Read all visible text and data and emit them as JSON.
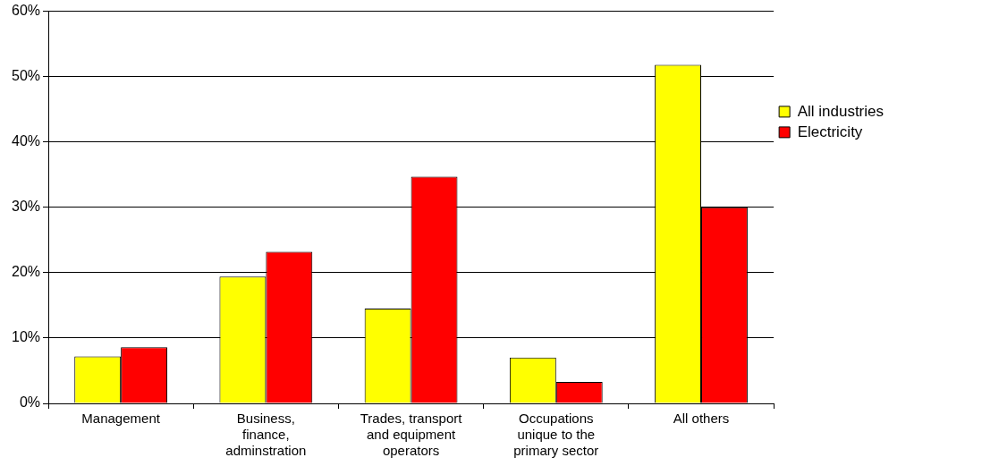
{
  "chart_data": {
    "type": "bar",
    "categories": [
      "Management",
      "Business, finance, adminstration",
      "Trades, transport and equipment operators",
      "Occupations unique to the primary sector",
      "All others"
    ],
    "series": [
      {
        "name": "All industries",
        "color": "#ffff00",
        "values": [
          7.2,
          19.4,
          14.5,
          7.0,
          51.8
        ]
      },
      {
        "name": "Electricity",
        "color": "#ff0000",
        "values": [
          8.6,
          23.2,
          34.7,
          3.3,
          30.0
        ]
      }
    ],
    "ylim": [
      0,
      60
    ],
    "yticks": [
      {
        "value": 0,
        "label": "0%"
      },
      {
        "value": 10,
        "label": "10%"
      },
      {
        "value": 20,
        "label": "20%"
      },
      {
        "value": 30,
        "label": "30%"
      },
      {
        "value": 40,
        "label": "40%"
      },
      {
        "value": 50,
        "label": "50%"
      },
      {
        "value": 60,
        "label": "60%"
      }
    ],
    "grid": "y",
    "legend": "right"
  }
}
